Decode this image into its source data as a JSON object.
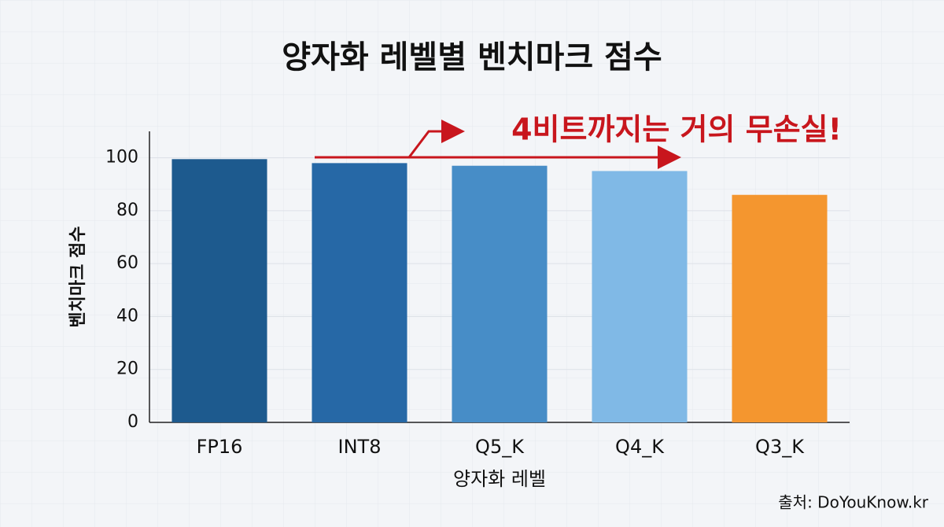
{
  "chart_data": {
    "type": "bar",
    "title": "양자화 레벨별 벤치마크 점수",
    "annotation": "4비트까지는 거의 무손실!",
    "source": "출처: DoYouKnow.kr",
    "x_label": "양자화 레벨",
    "y_label": "벤치마크 점수",
    "categories": [
      "FP16",
      "INT8",
      "Q5_K",
      "Q4_K",
      "Q3_K"
    ],
    "values": [
      99.5,
      98,
      97,
      95,
      86
    ],
    "colors": [
      "#1d5a8e",
      "#2668a6",
      "#478dc7",
      "#80b9e6",
      "#f4962f"
    ],
    "ylim": [
      0,
      110
    ],
    "yticks": [
      0,
      20,
      40,
      60,
      80,
      100
    ],
    "grid": true
  }
}
